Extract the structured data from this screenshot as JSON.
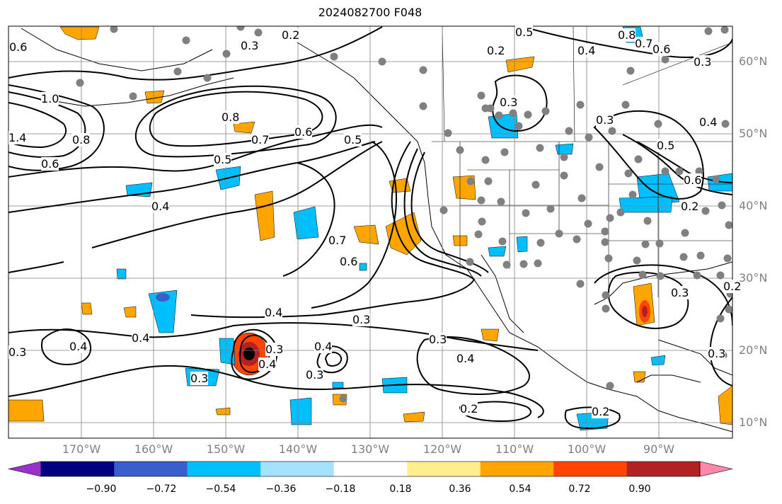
{
  "title": "2024082700 F048",
  "latitude_labels": [
    "60°N",
    "50°N",
    "40°N",
    "30°N",
    "20°N",
    "10°N"
  ],
  "longitude_labels": [
    "170°W",
    "160°W",
    "150°W",
    "140°W",
    "130°W",
    "120°W",
    "110°W",
    "100°W",
    "90°W"
  ],
  "colorbar": {
    "ticks": [
      "−0.90",
      "−0.72",
      "−0.54",
      "−0.36",
      "−0.18",
      "0.18",
      "0.36",
      "0.54",
      "0.72",
      "0.90"
    ],
    "colors": [
      "#9932cc",
      "#000080",
      "#3a5fcd",
      "#00bfff",
      "#a4e2ff",
      "#ffffff",
      "#ffee90",
      "#ffa500",
      "#ff4500",
      "#b22222",
      "#ff88aa"
    ]
  },
  "contour_labels": [
    "0.6",
    "0.2",
    "0.3",
    "0.5",
    "0.2",
    "0.4",
    "0.8",
    "0.7",
    "0.6",
    "0.3",
    "1.0",
    "1.4",
    "0.8",
    "0.6",
    "0.8",
    "0.7",
    "0.6",
    "0.5",
    "0.5",
    "0.4",
    "0.7",
    "0.6",
    "0.3",
    "0.3",
    "0.4",
    "0.5",
    "0.6",
    "0.2",
    "0.4",
    "0.3",
    "0.4",
    "0.3",
    "0.4",
    "0.3",
    "0.3",
    "0.4",
    "0.3",
    "0.3",
    "0.4",
    "0.2",
    "0.2",
    "0.3",
    "0.4",
    "0.3",
    "0.2"
  ],
  "colors": {
    "contour": "#000000",
    "grid": "#808080",
    "station": "#808080",
    "positive_shade": "#ffa500",
    "negative_shade": "#00bfff"
  }
}
